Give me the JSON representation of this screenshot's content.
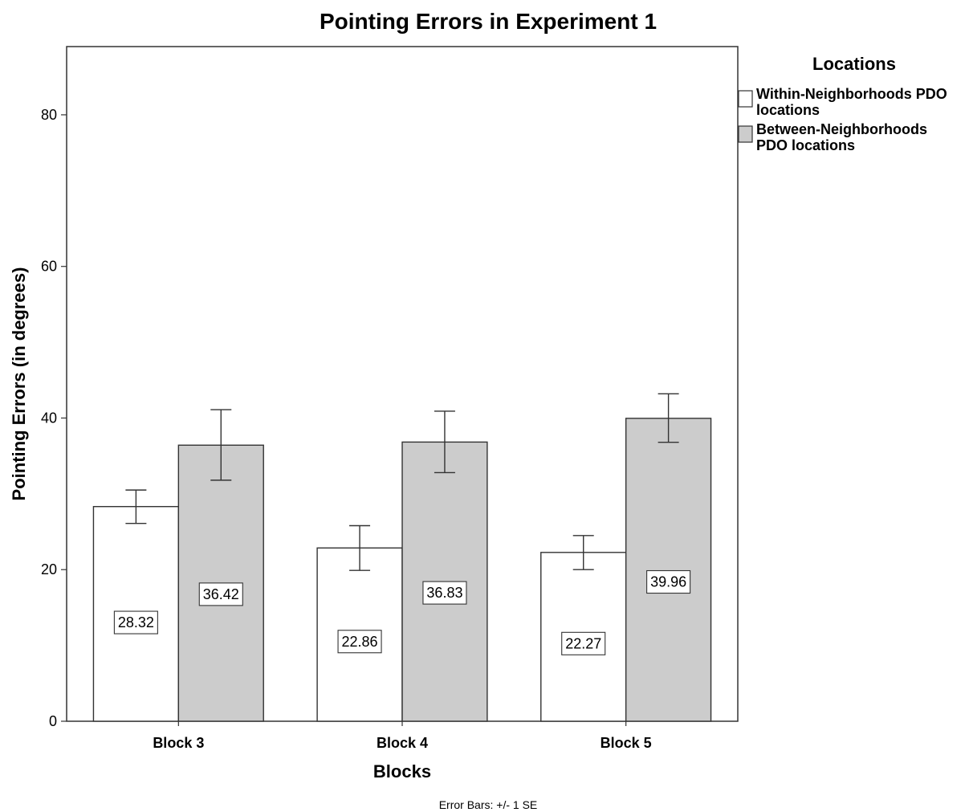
{
  "chart_data": {
    "type": "bar",
    "title": "Pointing Errors in Experiment 1",
    "xlabel": "Blocks",
    "ylabel": "Pointing Errors (in degrees)",
    "categories": [
      "Block 3",
      "Block 4",
      "Block 5"
    ],
    "ylim": [
      0,
      89
    ],
    "yticks": [
      0,
      20,
      40,
      60,
      80
    ],
    "grid": false,
    "legend": {
      "title": "Locations",
      "placement": "right",
      "entries": [
        {
          "lines": [
            "Within-Neighborhoods PDO",
            "locations"
          ],
          "color": "#ffffff"
        },
        {
          "lines": [
            "Between-Neighborhoods",
            "PDO locations"
          ],
          "color": "#cccccc"
        }
      ]
    },
    "series": [
      {
        "name": "Within-Neighborhoods PDO locations",
        "color": "#ffffff",
        "values": [
          28.32,
          22.86,
          22.27
        ],
        "labels": [
          "28.32",
          "22.86",
          "22.27"
        ],
        "error_low": [
          26.1,
          19.9,
          20.0
        ],
        "error_high": [
          30.5,
          25.8,
          24.5
        ]
      },
      {
        "name": "Between-Neighborhoods PDO locations",
        "color": "#cccccc",
        "values": [
          36.42,
          36.83,
          39.96
        ],
        "labels": [
          "36.42",
          "36.83",
          "39.96"
        ],
        "error_low": [
          31.8,
          32.8,
          36.8
        ],
        "error_high": [
          41.1,
          40.9,
          43.2
        ]
      }
    ],
    "note": "Error Bars: +/- 1 SE"
  }
}
